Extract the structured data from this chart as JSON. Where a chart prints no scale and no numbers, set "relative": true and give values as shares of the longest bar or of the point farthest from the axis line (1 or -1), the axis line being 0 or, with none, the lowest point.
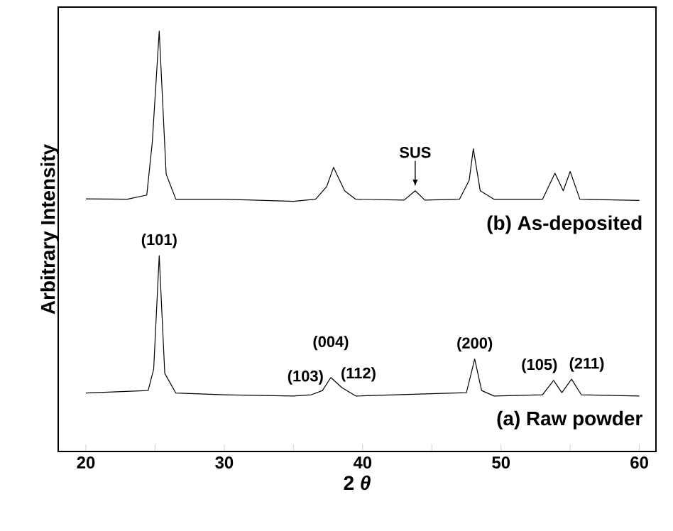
{
  "chart_data": {
    "type": "line",
    "relative": true,
    "xlabel": "2 *θ*",
    "ylabel": "Arbitrary Intensity",
    "xlim": [
      18,
      61.2
    ],
    "xticks": [
      20,
      {
        "value": 25,
        "label": null
      },
      30,
      {
        "value": 35,
        "label": null
      },
      40,
      {
        "value": 45,
        "label": null
      },
      50,
      {
        "value": 55,
        "label": null
      },
      60
    ],
    "marker": "none",
    "line_style": "solid",
    "grid": false,
    "series": [
      {
        "name": "(b) As-deposited",
        "color": "#000000",
        "x": [
          20,
          23,
          24.4,
          24.8,
          25.3,
          25.8,
          26.5,
          30,
          35,
          36.6,
          37.4,
          37.9,
          38.7,
          39.5,
          43,
          43.8,
          44.5,
          47,
          47.7,
          48.0,
          48.5,
          49.5,
          53,
          53.9,
          54.5,
          55.0,
          55.7,
          60
        ],
        "values": [
          0.601,
          0.6,
          0.61,
          0.736,
          1.0,
          0.66,
          0.6,
          0.6,
          0.595,
          0.6,
          0.63,
          0.676,
          0.62,
          0.6,
          0.598,
          0.62,
          0.598,
          0.6,
          0.645,
          0.72,
          0.62,
          0.6,
          0.6,
          0.662,
          0.62,
          0.666,
          0.6,
          0.597
        ]
      },
      {
        "name": "(a) Raw powder",
        "color": "#000000",
        "x": [
          20,
          24.5,
          24.9,
          25.3,
          25.7,
          26.5,
          30,
          35,
          36.3,
          37.1,
          37.7,
          38.5,
          39.5,
          47.5,
          48.1,
          48.6,
          49.5,
          53,
          53.8,
          54.4,
          55.1,
          55.8,
          60
        ],
        "values": [
          0.139,
          0.145,
          0.196,
          0.466,
          0.186,
          0.139,
          0.135,
          0.132,
          0.135,
          0.145,
          0.176,
          0.152,
          0.132,
          0.14,
          0.22,
          0.145,
          0.132,
          0.135,
          0.169,
          0.14,
          0.172,
          0.135,
          0.132
        ]
      }
    ],
    "annotations": [
      {
        "text": "(101)",
        "x": 25.3,
        "y": 0.466
      },
      {
        "text": "SUS",
        "x": 43.8,
        "y": 0.62
      },
      {
        "text": "(004)",
        "x": 37.7,
        "y": 0.176
      },
      {
        "text": "(103)",
        "x": 37.1,
        "y": 0.145
      },
      {
        "text": "(112)",
        "x": 38.5,
        "y": 0.152
      },
      {
        "text": "(200)",
        "x": 48.1,
        "y": 0.22
      },
      {
        "text": "(105)",
        "x": 53.8,
        "y": 0.169
      },
      {
        "text": "(211)",
        "x": 55.1,
        "y": 0.172
      }
    ]
  }
}
